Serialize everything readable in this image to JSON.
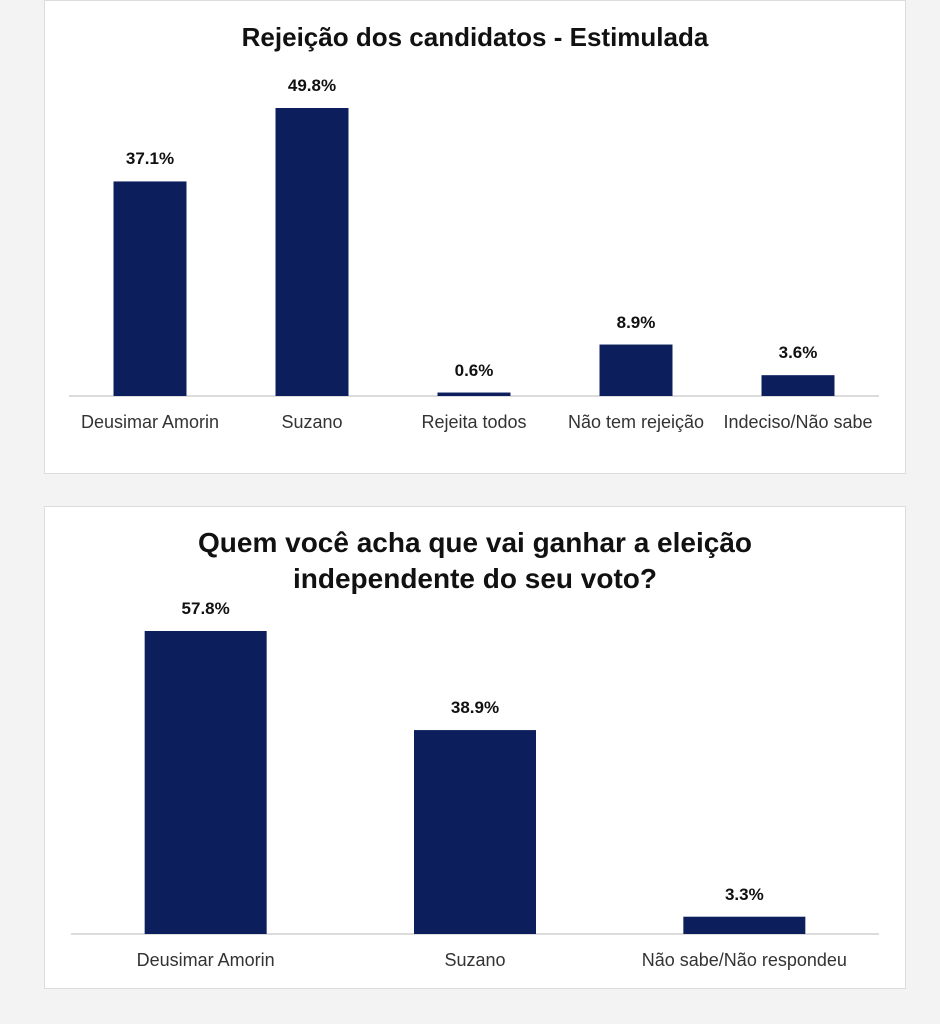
{
  "chart_data": [
    {
      "type": "bar",
      "title": "Rejeição dos candidatos - Estimulada",
      "categories": [
        "Deusimar Amorin",
        "Suzano",
        "Rejeita todos",
        "Não tem rejeição",
        "Indeciso/Não sabe"
      ],
      "values": [
        37.1,
        49.8,
        0.6,
        8.9,
        3.6
      ],
      "value_labels": [
        "37.1%",
        "49.8%",
        "0.6%",
        "8.9%",
        "3.6%"
      ],
      "color": "#0c1f5c"
    },
    {
      "type": "bar",
      "title": "Quem você acha que vai ganhar a eleição independente do seu voto?",
      "categories": [
        "Deusimar Amorin",
        "Suzano",
        "Não sabe/Não respondeu"
      ],
      "values": [
        57.8,
        38.9,
        3.3
      ],
      "value_labels": [
        "57.8%",
        "38.9%",
        "3.3%"
      ],
      "color": "#0c1f5c"
    }
  ]
}
